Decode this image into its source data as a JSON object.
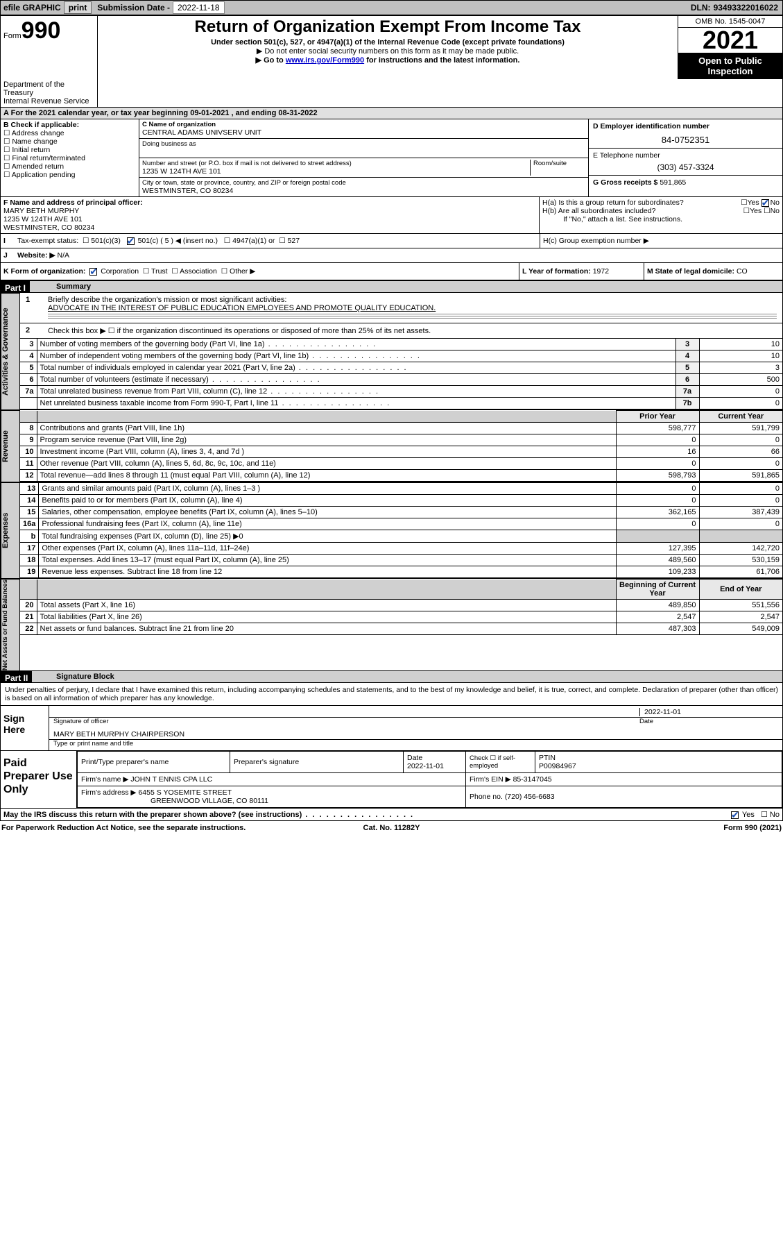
{
  "topbar": {
    "efile": "efile GRAPHIC",
    "print": "print",
    "subdate_lbl": "Submission Date - ",
    "subdate": "2022-11-18",
    "dln_lbl": "DLN: ",
    "dln": "93493322016022"
  },
  "header": {
    "form_label": "Form",
    "form_no": "990",
    "dept1": "Department of the Treasury",
    "dept2": "Internal Revenue Service",
    "title": "Return of Organization Exempt From Income Tax",
    "subtitle": "Under section 501(c), 527, or 4947(a)(1) of the Internal Revenue Code (except private foundations)",
    "note1": "▶ Do not enter social security numbers on this form as it may be made public.",
    "note2_pre": "▶ Go to ",
    "note2_link": "www.irs.gov/Form990",
    "note2_post": " for instructions and the latest information.",
    "omb": "OMB No. 1545-0047",
    "year": "2021",
    "open1": "Open to Public",
    "open2": "Inspection"
  },
  "period": "For the 2021 calendar year, or tax year beginning 09-01-2021   , and ending 08-31-2022",
  "boxB": {
    "hdr": "B Check if applicable:",
    "opts": [
      "☐ Address change",
      "☐ Name change",
      "☐ Initial return",
      "☐ Final return/terminated",
      "☐ Amended return",
      "☐ Application pending"
    ]
  },
  "boxC": {
    "c_lbl": "C Name of organization",
    "c_val": "CENTRAL ADAMS UNIVSERV UNIT",
    "dba_lbl": "Doing business as",
    "addr_lbl": "Number and street (or P.O. box if mail is not delivered to street address)",
    "room_lbl": "Room/suite",
    "addr_val": "1235 W 124TH AVE 101",
    "city_lbl": "City or town, state or province, country, and ZIP or foreign postal code",
    "city_val": "WESTMINSTER, CO  80234"
  },
  "boxD": {
    "lbl": "D Employer identification number",
    "val": "84-0752351"
  },
  "boxE": {
    "lbl": "E Telephone number",
    "val": "(303) 457-3324"
  },
  "boxG": {
    "lbl": "G Gross receipts $",
    "val": "591,865"
  },
  "boxF": {
    "lbl": "F  Name and address of principal officer:",
    "name": "MARY BETH MURPHY",
    "addr": "1235 W 124TH AVE 101",
    "city": "WESTMINSTER, CO  80234"
  },
  "boxH": {
    "ha": "H(a)  Is this a group return for subordinates?",
    "hb": "H(b)  Are all subordinates included?",
    "hb_note": "If \"No,\" attach a list. See instructions.",
    "hc": "H(c)  Group exemption number ▶",
    "yes": "Yes",
    "no": "No"
  },
  "boxI": {
    "lbl": "I",
    "txt": "Tax-exempt status:",
    "c1": "501(c)(3)",
    "c2": "501(c) ( 5 ) ◀ (insert no.)",
    "c3": "4947(a)(1) or",
    "c4": "527"
  },
  "boxJ": {
    "lbl": "J",
    "txt": "Website: ▶",
    "val": "N/A"
  },
  "boxK": {
    "lbl": "K Form of organization:",
    "c1": "Corporation",
    "c2": "Trust",
    "c3": "Association",
    "c4": "Other ▶"
  },
  "boxL": {
    "lbl": "L Year of formation:",
    "val": "1972"
  },
  "boxM": {
    "lbl": "M State of legal domicile:",
    "val": "CO"
  },
  "part1": {
    "hdr": "Part I",
    "title": "Summary"
  },
  "mission": {
    "n": "1",
    "lbl": "Briefly describe the organization's mission or most significant activities:",
    "txt": "ADVOCATE IN THE INTEREST OF PUBLIC EDUCATION EMPLOYEES AND PROMOTE QUALITY EDUCATION."
  },
  "line2": {
    "n": "2",
    "txt": "Check this box ▶ ☐  if the organization discontinued its operations or disposed of more than 25% of its net assets."
  },
  "gov_rows": [
    {
      "n": "3",
      "txt": "Number of voting members of the governing body (Part VI, line 1a)",
      "lab": "3",
      "val": "10"
    },
    {
      "n": "4",
      "txt": "Number of independent voting members of the governing body (Part VI, line 1b)",
      "lab": "4",
      "val": "10"
    },
    {
      "n": "5",
      "txt": "Total number of individuals employed in calendar year 2021 (Part V, line 2a)",
      "lab": "5",
      "val": "3"
    },
    {
      "n": "6",
      "txt": "Total number of volunteers (estimate if necessary)",
      "lab": "6",
      "val": "500"
    },
    {
      "n": "7a",
      "txt": "Total unrelated business revenue from Part VIII, column (C), line 12",
      "lab": "7a",
      "val": "0"
    },
    {
      "n": "",
      "txt": "Net unrelated business taxable income from Form 990-T, Part I, line 11",
      "lab": "7b",
      "val": "0"
    }
  ],
  "col_hdr": {
    "prior": "Prior Year",
    "current": "Current Year"
  },
  "rev_rows": [
    {
      "n": "8",
      "txt": "Contributions and grants (Part VIII, line 1h)",
      "p": "598,777",
      "c": "591,799"
    },
    {
      "n": "9",
      "txt": "Program service revenue (Part VIII, line 2g)",
      "p": "0",
      "c": "0"
    },
    {
      "n": "10",
      "txt": "Investment income (Part VIII, column (A), lines 3, 4, and 7d )",
      "p": "16",
      "c": "66"
    },
    {
      "n": "11",
      "txt": "Other revenue (Part VIII, column (A), lines 5, 6d, 8c, 9c, 10c, and 11e)",
      "p": "0",
      "c": "0"
    },
    {
      "n": "12",
      "txt": "Total revenue—add lines 8 through 11 (must equal Part VIII, column (A), line 12)",
      "p": "598,793",
      "c": "591,865"
    }
  ],
  "exp_rows": [
    {
      "n": "13",
      "txt": "Grants and similar amounts paid (Part IX, column (A), lines 1–3 )",
      "p": "0",
      "c": "0"
    },
    {
      "n": "14",
      "txt": "Benefits paid to or for members (Part IX, column (A), line 4)",
      "p": "0",
      "c": "0"
    },
    {
      "n": "15",
      "txt": "Salaries, other compensation, employee benefits (Part IX, column (A), lines 5–10)",
      "p": "362,165",
      "c": "387,439"
    },
    {
      "n": "16a",
      "txt": "Professional fundraising fees (Part IX, column (A), line 11e)",
      "p": "0",
      "c": "0"
    },
    {
      "n": "b",
      "txt": "Total fundraising expenses (Part IX, column (D), line 25) ▶0",
      "p": "",
      "c": "",
      "shade": true
    },
    {
      "n": "17",
      "txt": "Other expenses (Part IX, column (A), lines 11a–11d, 11f–24e)",
      "p": "127,395",
      "c": "142,720"
    },
    {
      "n": "18",
      "txt": "Total expenses. Add lines 13–17 (must equal Part IX, column (A), line 25)",
      "p": "489,560",
      "c": "530,159"
    },
    {
      "n": "19",
      "txt": "Revenue less expenses. Subtract line 18 from line 12",
      "p": "109,233",
      "c": "61,706"
    }
  ],
  "na_hdr": {
    "beg": "Beginning of Current Year",
    "end": "End of Year"
  },
  "na_rows": [
    {
      "n": "20",
      "txt": "Total assets (Part X, line 16)",
      "p": "489,850",
      "c": "551,556"
    },
    {
      "n": "21",
      "txt": "Total liabilities (Part X, line 26)",
      "p": "2,547",
      "c": "2,547"
    },
    {
      "n": "22",
      "txt": "Net assets or fund balances. Subtract line 21 from line 20",
      "p": "487,303",
      "c": "549,009"
    }
  ],
  "side_labels": {
    "gov": "Activities & Governance",
    "rev": "Revenue",
    "exp": "Expenses",
    "na": "Net Assets or Fund Balances"
  },
  "part2": {
    "hdr": "Part II",
    "title": "Signature Block"
  },
  "declare": "Under penalties of perjury, I declare that I have examined this return, including accompanying schedules and statements, and to the best of my knowledge and belief, it is true, correct, and complete. Declaration of preparer (other than officer) is based on all information of which preparer has any knowledge.",
  "sign": {
    "here": "Sign Here",
    "sig_lbl": "Signature of officer",
    "date": "2022-11-01",
    "date_lbl": "Date",
    "name": "MARY BETH MURPHY CHAIRPERSON",
    "name_lbl": "Type or print name and title"
  },
  "paid": {
    "hdr": "Paid Preparer Use Only",
    "col1": "Print/Type preparer's name",
    "col2": "Preparer's signature",
    "col3": "Date",
    "col4": "Check ☐ if self-employed",
    "col5": "PTIN",
    "date": "2022-11-01",
    "ptin": "P00984967",
    "firm_lbl": "Firm's name    ▶",
    "firm": "JOHN T ENNIS CPA LLC",
    "ein_lbl": "Firm's EIN ▶",
    "ein": "85-3147045",
    "addr_lbl": "Firm's address ▶",
    "addr1": "6455 S YOSEMITE STREET",
    "addr2": "GREENWOOD VILLAGE, CO  80111",
    "phone_lbl": "Phone no.",
    "phone": "(720) 456-6683"
  },
  "may_discuss": "May the IRS discuss this return with the preparer shown above? (see instructions)",
  "bottom": {
    "pra": "For Paperwork Reduction Act Notice, see the separate instructions.",
    "cat": "Cat. No. 11282Y",
    "form": "Form 990 (2021)"
  }
}
